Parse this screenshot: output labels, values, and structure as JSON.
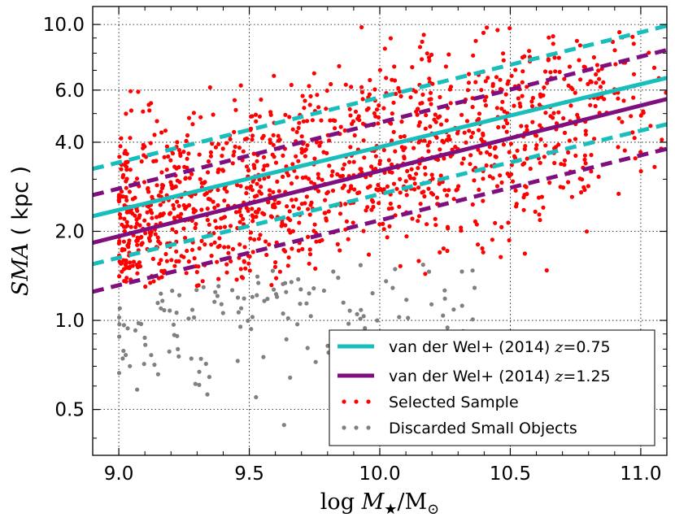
{
  "chart_data": {
    "type": "scatter",
    "title": "",
    "xlabel": "log M★/M⊙",
    "ylabel": "SMA ( kpc )",
    "xlim": [
      8.9,
      11.1
    ],
    "ylim": [
      0.35,
      11.5
    ],
    "yscale": "log",
    "grid": true,
    "x_ticks": [
      "9.0",
      "9.5",
      "10.0",
      "10.5",
      "11.0"
    ],
    "x_tick_values": [
      9.0,
      9.5,
      10.0,
      10.5,
      11.0
    ],
    "y_ticks": [
      "0.5",
      "1.0",
      "2.0",
      "4.0",
      "6.0",
      "10.0"
    ],
    "y_tick_values": [
      0.5,
      1.0,
      2.0,
      4.0,
      6.0,
      10.0
    ],
    "legend_position": "lower-right",
    "colors": {
      "cyan": "#17bebb",
      "purple": "#7f0f7f",
      "selected": "#ff0000",
      "discarded": "#808080"
    },
    "series": [
      {
        "name": "van der Wel+ (2014) z=0.75",
        "kind": "fit",
        "color": "#17bebb",
        "median": {
          "x": [
            8.9,
            11.1
          ],
          "y": [
            2.25,
            6.6
          ]
        },
        "upper": {
          "x": [
            8.9,
            11.1
          ],
          "y": [
            3.25,
            9.9
          ]
        },
        "lower": {
          "x": [
            8.9,
            11.1
          ],
          "y": [
            1.55,
            4.6
          ]
        }
      },
      {
        "name": "van der Wel+ (2014) z=1.25",
        "kind": "fit",
        "color": "#7f0f7f",
        "median": {
          "x": [
            8.9,
            11.1
          ],
          "y": [
            1.83,
            5.6
          ]
        },
        "upper": {
          "x": [
            8.9,
            11.1
          ],
          "y": [
            2.65,
            8.2
          ]
        },
        "lower": {
          "x": [
            8.9,
            11.1
          ],
          "y": [
            1.25,
            3.8
          ]
        }
      },
      {
        "name": "Selected Sample",
        "kind": "scatter",
        "color": "#ff0000",
        "count": 1300,
        "x_range": [
          9.0,
          11.1
        ],
        "y_range": [
          1.3,
          10.0
        ]
      },
      {
        "name": "Discarded Small Objects",
        "kind": "scatter",
        "color": "#808080",
        "count": 150,
        "x_range": [
          9.0,
          10.4
        ],
        "y_range": [
          0.4,
          1.55
        ]
      }
    ],
    "legend": [
      {
        "label": "van der Wel+ (2014) ",
        "z": "z=0.75",
        "style": "line",
        "color": "#17bebb"
      },
      {
        "label": "van der Wel+ (2014) ",
        "z": "z=1.25",
        "style": "line",
        "color": "#7f0f7f"
      },
      {
        "label": "Selected Sample",
        "z": "",
        "style": "dots",
        "color": "#ff0000"
      },
      {
        "label": "Discarded Small Objects",
        "z": "",
        "style": "dots",
        "color": "#808080"
      }
    ]
  }
}
